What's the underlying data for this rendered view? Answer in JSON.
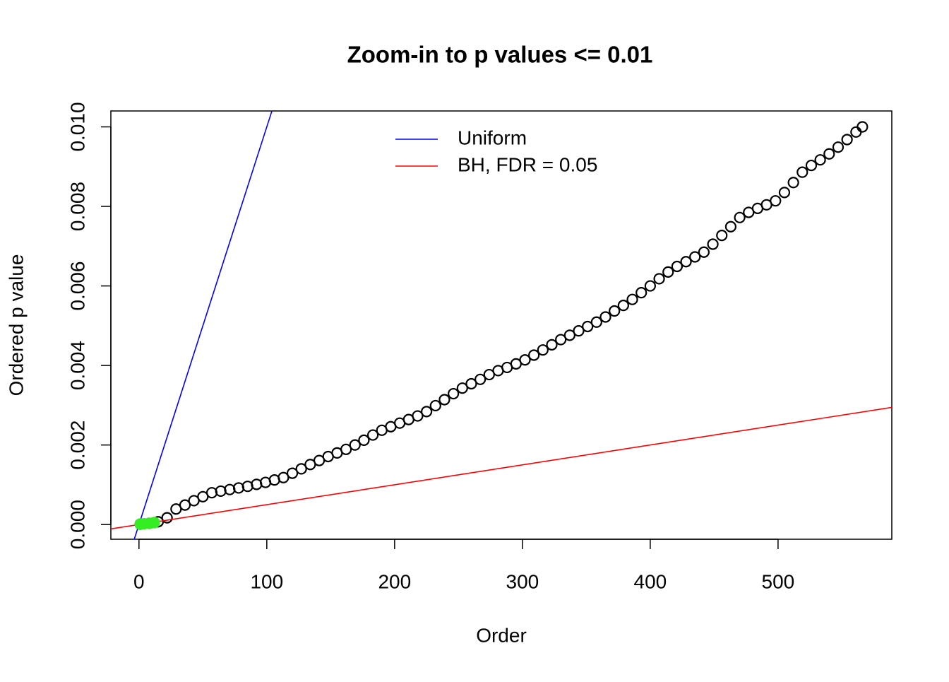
{
  "chart_data": {
    "type": "scatter",
    "title": "Zoom-in to p values <= 0.01",
    "xlabel": "Order",
    "ylabel": "Ordered p value",
    "xlim": [
      -22,
      589
    ],
    "ylim": [
      -0.00037,
      0.0104
    ],
    "xticks": [
      0,
      100,
      200,
      300,
      400,
      500
    ],
    "yticks": [
      {
        "value": 0,
        "label": "0.000"
      },
      {
        "value": 0.002,
        "label": "0.002"
      },
      {
        "value": 0.004,
        "label": "0.004"
      },
      {
        "value": 0.006,
        "label": "0.006"
      },
      {
        "value": 0.008,
        "label": "0.008"
      },
      {
        "value": 0.01,
        "label": "0.010"
      }
    ],
    "points": {
      "color": "#000000",
      "x": [
        1,
        8,
        15,
        22,
        29,
        36,
        43,
        50,
        57,
        64,
        71,
        78,
        85,
        92,
        99,
        106,
        113,
        120,
        127,
        134,
        141,
        148,
        155,
        162,
        169,
        176,
        183,
        190,
        197,
        204,
        211,
        218,
        225,
        232,
        239,
        246,
        253,
        260,
        267,
        274,
        281,
        288,
        295,
        302,
        309,
        316,
        323,
        330,
        337,
        344,
        351,
        358,
        365,
        372,
        379,
        386,
        393,
        400,
        407,
        414,
        421,
        428,
        435,
        442,
        449,
        456,
        463,
        470,
        477,
        484,
        491,
        498,
        505,
        512,
        519,
        526,
        533,
        540,
        547,
        554,
        561,
        566
      ],
      "y": [
        1e-05,
        3e-05,
        7e-05,
        0.00017,
        0.00039,
        0.00049,
        0.0006,
        0.0007,
        0.0008,
        0.00084,
        0.00088,
        0.00092,
        0.00096,
        0.00101,
        0.00106,
        0.00112,
        0.00118,
        0.00129,
        0.0014,
        0.00151,
        0.00161,
        0.00171,
        0.0018,
        0.00189,
        0.002,
        0.00212,
        0.00225,
        0.00237,
        0.00246,
        0.00255,
        0.00264,
        0.00273,
        0.00284,
        0.00299,
        0.00314,
        0.00329,
        0.00343,
        0.00354,
        0.00365,
        0.00377,
        0.00387,
        0.00395,
        0.00404,
        0.00414,
        0.00426,
        0.00439,
        0.00452,
        0.00465,
        0.00476,
        0.00487,
        0.00498,
        0.00509,
        0.00522,
        0.00537,
        0.00551,
        0.00566,
        0.00583,
        0.006,
        0.00618,
        0.00635,
        0.00649,
        0.00661,
        0.00673,
        0.00685,
        0.00705,
        0.00727,
        0.00749,
        0.00772,
        0.00785,
        0.00795,
        0.00804,
        0.00814,
        0.00835,
        0.0086,
        0.00886,
        0.00903,
        0.00917,
        0.00932,
        0.00949,
        0.00968,
        0.00987,
        0.01
      ]
    },
    "highlight": {
      "color": "#33ee22",
      "x": [
        1,
        4,
        8,
        12
      ],
      "y": [
        1e-05,
        2e-05,
        3e-05,
        5e-05
      ]
    },
    "lines": [
      {
        "name": "Uniform",
        "color": "#0000ff",
        "intercept": 0,
        "slope": 0.0001
      },
      {
        "name": "BH, FDR = 0.05",
        "color": "#ff0000",
        "intercept": 0,
        "slope": 5e-06
      }
    ]
  }
}
